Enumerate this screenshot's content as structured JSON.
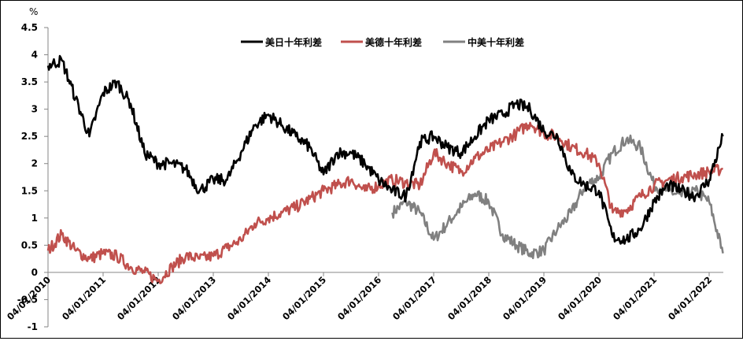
{
  "chart_data": {
    "type": "line",
    "title": "",
    "ylabel": "%",
    "xlabel": "",
    "ylim": [
      -1,
      4.5
    ],
    "yticks": [
      -1,
      -0.5,
      0,
      0.5,
      1,
      1.5,
      2,
      2.5,
      3,
      3.5,
      4,
      4.5
    ],
    "ytick_labels": [
      "-1",
      "-0.5",
      "0",
      "0.5",
      "1",
      "1.5",
      "2",
      "2.5",
      "3",
      "3.5",
      "4",
      "4.5"
    ],
    "xtick_labels": [
      "04/01/2010",
      "04/01/2011",
      "04/01/2012",
      "04/01/2013",
      "04/01/2014",
      "04/01/2015",
      "04/01/2016",
      "04/01/2017",
      "04/01/2018",
      "04/01/2019",
      "04/01/2020",
      "04/01/2021",
      "04/01/2022"
    ],
    "grid": false,
    "legend_position": "top-center",
    "x": [
      2010.0,
      2010.25,
      2010.5,
      2010.75,
      2011.0,
      2011.25,
      2011.5,
      2011.75,
      2012.0,
      2012.25,
      2012.5,
      2012.75,
      2013.0,
      2013.25,
      2013.5,
      2013.75,
      2014.0,
      2014.25,
      2014.5,
      2014.75,
      2015.0,
      2015.25,
      2015.5,
      2015.75,
      2016.0,
      2016.25,
      2016.5,
      2016.75,
      2017.0,
      2017.25,
      2017.5,
      2017.75,
      2018.0,
      2018.25,
      2018.5,
      2018.75,
      2019.0,
      2019.25,
      2019.5,
      2019.75,
      2020.0,
      2020.25,
      2020.5,
      2020.75,
      2021.0,
      2021.25,
      2021.5,
      2021.75,
      2022.0,
      2022.25
    ],
    "series": [
      {
        "name": "美日十年利差",
        "color": "#000000",
        "values": [
          3.8,
          3.9,
          3.2,
          2.5,
          3.3,
          3.5,
          3.1,
          2.2,
          2.0,
          2.0,
          1.9,
          1.5,
          1.7,
          1.7,
          2.2,
          2.7,
          2.9,
          2.7,
          2.5,
          2.3,
          1.8,
          2.2,
          2.2,
          2.0,
          1.7,
          1.5,
          1.4,
          2.4,
          2.5,
          2.3,
          2.2,
          2.5,
          2.8,
          2.9,
          3.1,
          3.0,
          2.6,
          2.5,
          1.8,
          1.6,
          1.5,
          0.65,
          0.6,
          0.8,
          1.3,
          1.6,
          1.5,
          1.4,
          1.7,
          2.5
        ]
      },
      {
        "name": "美德十年利差",
        "color": "#C0504D",
        "values": [
          0.4,
          0.7,
          0.4,
          0.25,
          0.35,
          0.3,
          0.1,
          0.0,
          -0.15,
          0.1,
          0.3,
          0.25,
          0.3,
          0.45,
          0.6,
          0.9,
          1.0,
          1.1,
          1.2,
          1.35,
          1.5,
          1.6,
          1.7,
          1.5,
          1.6,
          1.7,
          1.65,
          1.6,
          2.2,
          2.0,
          1.85,
          2.1,
          2.25,
          2.4,
          2.55,
          2.75,
          2.55,
          2.5,
          2.3,
          2.2,
          2.0,
          1.1,
          1.15,
          1.4,
          1.6,
          1.7,
          1.75,
          1.8,
          1.85,
          1.9
        ]
      },
      {
        "name": "中美十年利差",
        "color": "#808080",
        "values": [
          null,
          null,
          null,
          null,
          null,
          null,
          null,
          null,
          null,
          null,
          null,
          null,
          null,
          null,
          null,
          null,
          null,
          null,
          null,
          null,
          null,
          null,
          null,
          null,
          null,
          1.1,
          1.3,
          1.1,
          0.6,
          0.9,
          1.2,
          1.45,
          1.3,
          0.7,
          0.5,
          0.35,
          0.4,
          0.8,
          1.1,
          1.6,
          1.75,
          2.2,
          2.45,
          2.3,
          1.6,
          1.5,
          1.4,
          1.5,
          1.3,
          0.35
        ]
      }
    ]
  },
  "legend": {
    "items": [
      {
        "label": "美日十年利差",
        "color": "#000000"
      },
      {
        "label": "美德十年利差",
        "color": "#C0504D"
      },
      {
        "label": "中美十年利差",
        "color": "#808080"
      }
    ]
  },
  "axis": {
    "unit_label": "%"
  }
}
